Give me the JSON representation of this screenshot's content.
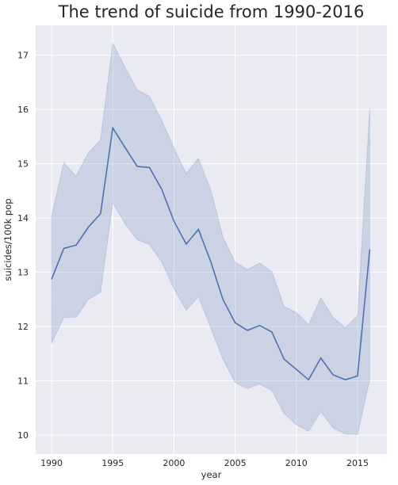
{
  "chart_data": {
    "type": "line",
    "title": "The trend of suicide from 1990-2016",
    "xlabel": "year",
    "ylabel": "suicides/100k pop",
    "xlim": [
      1988.7,
      2017.4
    ],
    "ylim": [
      9.65,
      17.55
    ],
    "x_ticks": [
      1990,
      1995,
      2000,
      2005,
      2010,
      2015
    ],
    "y_ticks": [
      10,
      11,
      12,
      13,
      14,
      15,
      16,
      17
    ],
    "grid": true,
    "background": "#eaeaf2",
    "line_color": "#4c72b0",
    "band_color": "#4c72b0",
    "series": [
      {
        "x": [
          1990,
          1991,
          1992,
          1993,
          1994,
          1995,
          1996,
          1997,
          1998,
          1999,
          2000,
          2001,
          2002,
          2003,
          2004,
          2005,
          2006,
          2007,
          2008,
          2009,
          2010,
          2011,
          2012,
          2013,
          2014,
          2015,
          2016
        ],
        "values": [
          12.87,
          13.44,
          13.5,
          13.83,
          14.08,
          15.66,
          15.3,
          14.95,
          14.93,
          14.53,
          13.94,
          13.52,
          13.79,
          13.2,
          12.5,
          12.07,
          11.93,
          12.02,
          11.9,
          11.4,
          11.21,
          11.02,
          11.42,
          11.11,
          11.02,
          11.09,
          13.42
        ],
        "ci_upper": [
          14.04,
          15.02,
          14.77,
          15.2,
          15.44,
          17.22,
          16.78,
          16.36,
          16.24,
          15.8,
          15.29,
          14.82,
          15.1,
          14.52,
          13.65,
          13.19,
          13.05,
          13.17,
          13.01,
          12.37,
          12.26,
          12.03,
          12.53,
          12.17,
          11.98,
          12.2,
          16.02
        ],
        "ci_lower": [
          11.69,
          12.17,
          12.17,
          12.5,
          12.63,
          14.28,
          13.89,
          13.6,
          13.51,
          13.19,
          12.7,
          12.3,
          12.55,
          11.98,
          11.4,
          10.97,
          10.86,
          10.94,
          10.82,
          10.4,
          10.19,
          10.07,
          10.43,
          10.13,
          10.02,
          10.01,
          11.03
        ]
      }
    ]
  }
}
